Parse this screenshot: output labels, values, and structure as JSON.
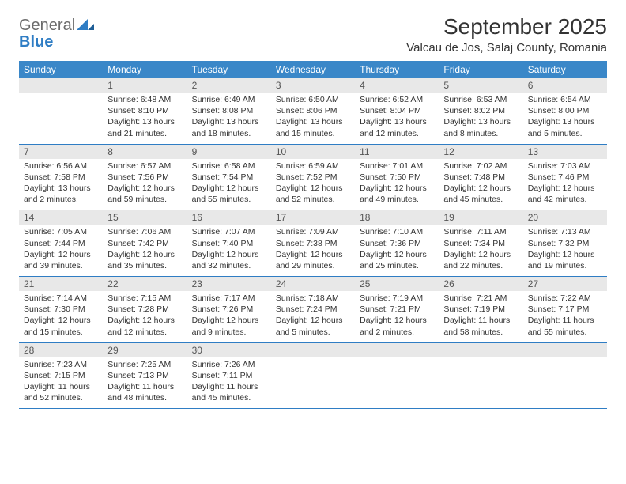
{
  "brand": {
    "word1": "General",
    "word2": "Blue"
  },
  "header": {
    "month_title": "September 2025",
    "location": "Valcau de Jos, Salaj County, Romania"
  },
  "colors": {
    "header_bg": "#3a87c8",
    "header_fg": "#ffffff",
    "daynum_bg": "#e8e8e8",
    "rule": "#2f7dc4",
    "logo_gray": "#6b6b6b",
    "logo_blue": "#2f7dc4"
  },
  "day_labels": [
    "Sunday",
    "Monday",
    "Tuesday",
    "Wednesday",
    "Thursday",
    "Friday",
    "Saturday"
  ],
  "weeks": [
    {
      "nums": [
        "",
        "1",
        "2",
        "3",
        "4",
        "5",
        "6"
      ],
      "cells": [
        null,
        {
          "sunrise": "6:48 AM",
          "sunset": "8:10 PM",
          "daylight": "13 hours and 21 minutes."
        },
        {
          "sunrise": "6:49 AM",
          "sunset": "8:08 PM",
          "daylight": "13 hours and 18 minutes."
        },
        {
          "sunrise": "6:50 AM",
          "sunset": "8:06 PM",
          "daylight": "13 hours and 15 minutes."
        },
        {
          "sunrise": "6:52 AM",
          "sunset": "8:04 PM",
          "daylight": "13 hours and 12 minutes."
        },
        {
          "sunrise": "6:53 AM",
          "sunset": "8:02 PM",
          "daylight": "13 hours and 8 minutes."
        },
        {
          "sunrise": "6:54 AM",
          "sunset": "8:00 PM",
          "daylight": "13 hours and 5 minutes."
        }
      ]
    },
    {
      "nums": [
        "7",
        "8",
        "9",
        "10",
        "11",
        "12",
        "13"
      ],
      "cells": [
        {
          "sunrise": "6:56 AM",
          "sunset": "7:58 PM",
          "daylight": "13 hours and 2 minutes."
        },
        {
          "sunrise": "6:57 AM",
          "sunset": "7:56 PM",
          "daylight": "12 hours and 59 minutes."
        },
        {
          "sunrise": "6:58 AM",
          "sunset": "7:54 PM",
          "daylight": "12 hours and 55 minutes."
        },
        {
          "sunrise": "6:59 AM",
          "sunset": "7:52 PM",
          "daylight": "12 hours and 52 minutes."
        },
        {
          "sunrise": "7:01 AM",
          "sunset": "7:50 PM",
          "daylight": "12 hours and 49 minutes."
        },
        {
          "sunrise": "7:02 AM",
          "sunset": "7:48 PM",
          "daylight": "12 hours and 45 minutes."
        },
        {
          "sunrise": "7:03 AM",
          "sunset": "7:46 PM",
          "daylight": "12 hours and 42 minutes."
        }
      ]
    },
    {
      "nums": [
        "14",
        "15",
        "16",
        "17",
        "18",
        "19",
        "20"
      ],
      "cells": [
        {
          "sunrise": "7:05 AM",
          "sunset": "7:44 PM",
          "daylight": "12 hours and 39 minutes."
        },
        {
          "sunrise": "7:06 AM",
          "sunset": "7:42 PM",
          "daylight": "12 hours and 35 minutes."
        },
        {
          "sunrise": "7:07 AM",
          "sunset": "7:40 PM",
          "daylight": "12 hours and 32 minutes."
        },
        {
          "sunrise": "7:09 AM",
          "sunset": "7:38 PM",
          "daylight": "12 hours and 29 minutes."
        },
        {
          "sunrise": "7:10 AM",
          "sunset": "7:36 PM",
          "daylight": "12 hours and 25 minutes."
        },
        {
          "sunrise": "7:11 AM",
          "sunset": "7:34 PM",
          "daylight": "12 hours and 22 minutes."
        },
        {
          "sunrise": "7:13 AM",
          "sunset": "7:32 PM",
          "daylight": "12 hours and 19 minutes."
        }
      ]
    },
    {
      "nums": [
        "21",
        "22",
        "23",
        "24",
        "25",
        "26",
        "27"
      ],
      "cells": [
        {
          "sunrise": "7:14 AM",
          "sunset": "7:30 PM",
          "daylight": "12 hours and 15 minutes."
        },
        {
          "sunrise": "7:15 AM",
          "sunset": "7:28 PM",
          "daylight": "12 hours and 12 minutes."
        },
        {
          "sunrise": "7:17 AM",
          "sunset": "7:26 PM",
          "daylight": "12 hours and 9 minutes."
        },
        {
          "sunrise": "7:18 AM",
          "sunset": "7:24 PM",
          "daylight": "12 hours and 5 minutes."
        },
        {
          "sunrise": "7:19 AM",
          "sunset": "7:21 PM",
          "daylight": "12 hours and 2 minutes."
        },
        {
          "sunrise": "7:21 AM",
          "sunset": "7:19 PM",
          "daylight": "11 hours and 58 minutes."
        },
        {
          "sunrise": "7:22 AM",
          "sunset": "7:17 PM",
          "daylight": "11 hours and 55 minutes."
        }
      ]
    },
    {
      "nums": [
        "28",
        "29",
        "30",
        "",
        "",
        "",
        ""
      ],
      "cells": [
        {
          "sunrise": "7:23 AM",
          "sunset": "7:15 PM",
          "daylight": "11 hours and 52 minutes."
        },
        {
          "sunrise": "7:25 AM",
          "sunset": "7:13 PM",
          "daylight": "11 hours and 48 minutes."
        },
        {
          "sunrise": "7:26 AM",
          "sunset": "7:11 PM",
          "daylight": "11 hours and 45 minutes."
        },
        null,
        null,
        null,
        null
      ]
    }
  ],
  "labels": {
    "sunrise_prefix": "Sunrise: ",
    "sunset_prefix": "Sunset: ",
    "daylight_prefix": "Daylight: "
  }
}
